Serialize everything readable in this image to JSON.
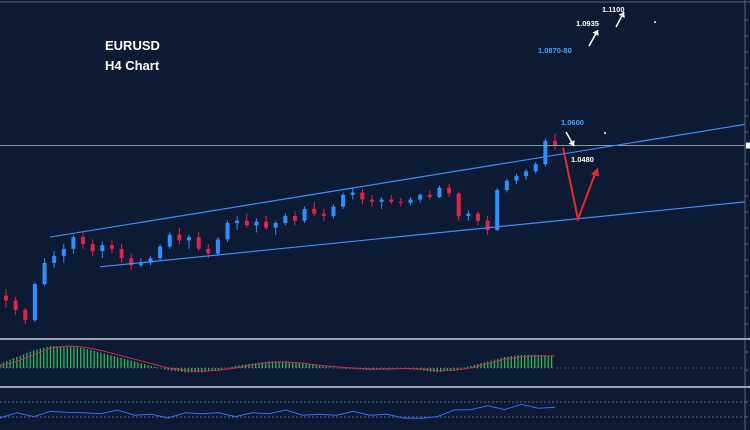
{
  "chart_data": {
    "type": "candlestick",
    "symbol": "EURUSD",
    "timeframe": "H4 Chart",
    "colors": {
      "background": "#0c1a33",
      "up_candle": "#2f8fff",
      "down_candle": "#e0234a",
      "channel": "#3a8cff",
      "price_line": "#8a97a8",
      "projection_red": "#e32b2b",
      "target_white": "#ffffff",
      "level_blue_text": "#4da3ff",
      "histogram": "#1fbf5a",
      "signal_line": "#e0234a",
      "oscillator_line": "#2f6fff"
    },
    "ohlc_approx": [
      [
        1.053,
        1.0545,
        1.0505,
        1.052
      ],
      [
        1.052,
        1.0528,
        1.049,
        1.05
      ],
      [
        1.05,
        1.0505,
        1.047,
        1.0478
      ],
      [
        1.0478,
        1.056,
        1.0475,
        1.0555
      ],
      [
        1.0555,
        1.061,
        1.055,
        1.06
      ],
      [
        1.06,
        1.0625,
        1.059,
        1.0615
      ],
      [
        1.0615,
        1.064,
        1.06,
        1.063
      ],
      [
        1.063,
        1.066,
        1.062,
        1.0655
      ],
      [
        1.0655,
        1.0668,
        1.063,
        1.064
      ],
      [
        1.064,
        1.065,
        1.0615,
        1.0625
      ],
      [
        1.0625,
        1.0645,
        1.061,
        1.0638
      ],
      [
        1.0638,
        1.065,
        1.062,
        1.063
      ],
      [
        1.063,
        1.064,
        1.06,
        1.061
      ],
      [
        1.061,
        1.062,
        1.0585,
        1.0595
      ],
      [
        1.0595,
        1.061,
        1.059,
        1.06
      ],
      [
        1.06,
        1.0615,
        1.0595,
        1.061
      ],
      [
        1.061,
        1.064,
        1.0605,
        1.0635
      ],
      [
        1.0635,
        1.0665,
        1.063,
        1.066
      ],
      [
        1.066,
        1.0675,
        1.064,
        1.0648
      ],
      [
        1.0648,
        1.066,
        1.063,
        1.0655
      ],
      [
        1.0655,
        1.0665,
        1.0625,
        1.063
      ],
      [
        1.063,
        1.064,
        1.061,
        1.062
      ],
      [
        1.062,
        1.0655,
        1.0615,
        1.065
      ],
      [
        1.065,
        1.069,
        1.0645,
        1.0685
      ],
      [
        1.0685,
        1.07,
        1.067,
        1.069
      ],
      [
        1.069,
        1.0705,
        1.0675,
        1.068
      ],
      [
        1.068,
        1.0695,
        1.0665,
        1.0688
      ],
      [
        1.0688,
        1.07,
        1.067,
        1.0675
      ],
      [
        1.0675,
        1.069,
        1.066,
        1.0685
      ],
      [
        1.0685,
        1.0705,
        1.068,
        1.07
      ],
      [
        1.07,
        1.071,
        1.068,
        1.069
      ],
      [
        1.069,
        1.072,
        1.0685,
        1.0715
      ],
      [
        1.0715,
        1.073,
        1.07,
        1.0705
      ],
      [
        1.0705,
        1.0715,
        1.069,
        1.07
      ],
      [
        1.07,
        1.0725,
        1.0695,
        1.072
      ],
      [
        1.072,
        1.075,
        1.0715,
        1.0745
      ],
      [
        1.0745,
        1.076,
        1.0735,
        1.075
      ],
      [
        1.075,
        1.0758,
        1.0725,
        1.0735
      ],
      [
        1.0735,
        1.0745,
        1.072,
        1.073
      ],
      [
        1.073,
        1.074,
        1.0715,
        1.0735
      ],
      [
        1.0735,
        1.0745,
        1.0725,
        1.073
      ],
      [
        1.073,
        1.0738,
        1.072,
        1.0728
      ],
      [
        1.0728,
        1.074,
        1.0722,
        1.0735
      ],
      [
        1.0735,
        1.0748,
        1.0728,
        1.0745
      ],
      [
        1.0745,
        1.0755,
        1.0735,
        1.074
      ],
      [
        1.074,
        1.0765,
        1.0738,
        1.076
      ],
      [
        1.076,
        1.0768,
        1.074,
        1.0748
      ],
      [
        1.0748,
        1.0752,
        1.069,
        1.07
      ],
      [
        1.07,
        1.0712,
        1.069,
        1.0705
      ],
      [
        1.0705,
        1.071,
        1.068,
        1.069
      ],
      [
        1.069,
        1.07,
        1.066,
        1.067
      ],
      [
        1.067,
        1.076,
        1.0668,
        1.0755
      ],
      [
        1.0755,
        1.078,
        1.075,
        1.0775
      ],
      [
        1.0775,
        1.079,
        1.0768,
        1.0785
      ],
      [
        1.0785,
        1.08,
        1.0778,
        1.0795
      ],
      [
        1.0795,
        1.0815,
        1.079,
        1.081
      ],
      [
        1.081,
        1.0865,
        1.0805,
        1.086
      ],
      [
        1.086,
        1.0875,
        1.084,
        1.085
      ]
    ],
    "channel": {
      "upper": [
        [
          0,
          1.0655
        ],
        [
          1,
          1.0895
        ]
      ],
      "lower": [
        [
          0,
          1.0598
        ],
        [
          1,
          1.073
        ]
      ]
    },
    "projection_path": [
      [
        1.085,
        "now"
      ],
      [
        1.07,
        "dip"
      ],
      [
        1.079,
        "rebound"
      ]
    ],
    "targets_up": [
      "1.0935",
      "1.1100"
    ],
    "targets_down": [
      "1.0600",
      "1.0480"
    ],
    "resistance_label": "1.0870-80",
    "current_price": 1.085,
    "indicator_macd": {
      "histogram": [
        0.2,
        0.5,
        0.8,
        1.0,
        1.0,
        0.9,
        0.7,
        0.5,
        0.3,
        0.1,
        -0.1,
        -0.2,
        -0.2,
        -0.1,
        0.1,
        0.2,
        0.3,
        0.3,
        0.2,
        0.1,
        0.0,
        -0.05,
        -0.1,
        -0.05,
        0.0,
        -0.1,
        -0.2,
        -0.1,
        0.1,
        0.3,
        0.5,
        0.6,
        0.6,
        0.55
      ],
      "signal": [
        0.1,
        0.3,
        0.6,
        0.9,
        1.0,
        0.95,
        0.8,
        0.6,
        0.4,
        0.2,
        0.0,
        -0.1,
        -0.15,
        -0.1,
        0.0,
        0.15,
        0.25,
        0.28,
        0.22,
        0.12,
        0.05,
        0.0,
        -0.05,
        -0.05,
        -0.02,
        -0.05,
        -0.12,
        -0.1,
        0.0,
        0.2,
        0.4,
        0.5,
        0.55,
        0.55
      ]
    },
    "indicator_osc": {
      "values": [
        0.4,
        0.5,
        0.45,
        0.55,
        0.6,
        0.5,
        0.55,
        0.6,
        0.5,
        0.45,
        0.4,
        0.5,
        0.55,
        0.5,
        0.45,
        0.5,
        0.55,
        0.6,
        0.5,
        0.45,
        0.5,
        0.55,
        0.5,
        0.45,
        0.4,
        0.3,
        0.45,
        0.6,
        0.7,
        0.75,
        0.7,
        0.8,
        0.75,
        0.7
      ]
    },
    "ylim": [
      1.044,
      1.116
    ]
  }
}
